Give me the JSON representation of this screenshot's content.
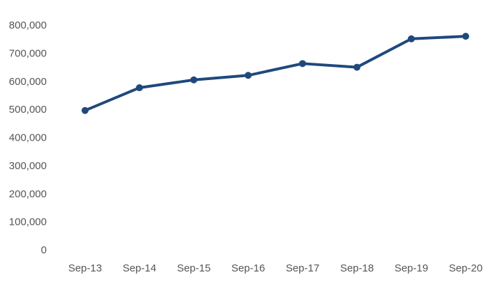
{
  "chart_data": {
    "type": "line",
    "title": "",
    "xlabel": "",
    "ylabel": "",
    "categories": [
      "Sep-13",
      "Sep-14",
      "Sep-15",
      "Sep-16",
      "Sep-17",
      "Sep-18",
      "Sep-19",
      "Sep-20"
    ],
    "series": [
      {
        "values": [
          496000,
          577000,
          605000,
          621000,
          663000,
          650000,
          751000,
          760000
        ]
      }
    ],
    "ylim": [
      0,
      800000
    ],
    "yticks": [
      "0",
      "100,000",
      "200,000",
      "300,000",
      "400,000",
      "500,000",
      "600,000",
      "700,000",
      "800,000"
    ],
    "grid": false,
    "legend": "none",
    "colors": {
      "series": "#1f497d"
    }
  }
}
